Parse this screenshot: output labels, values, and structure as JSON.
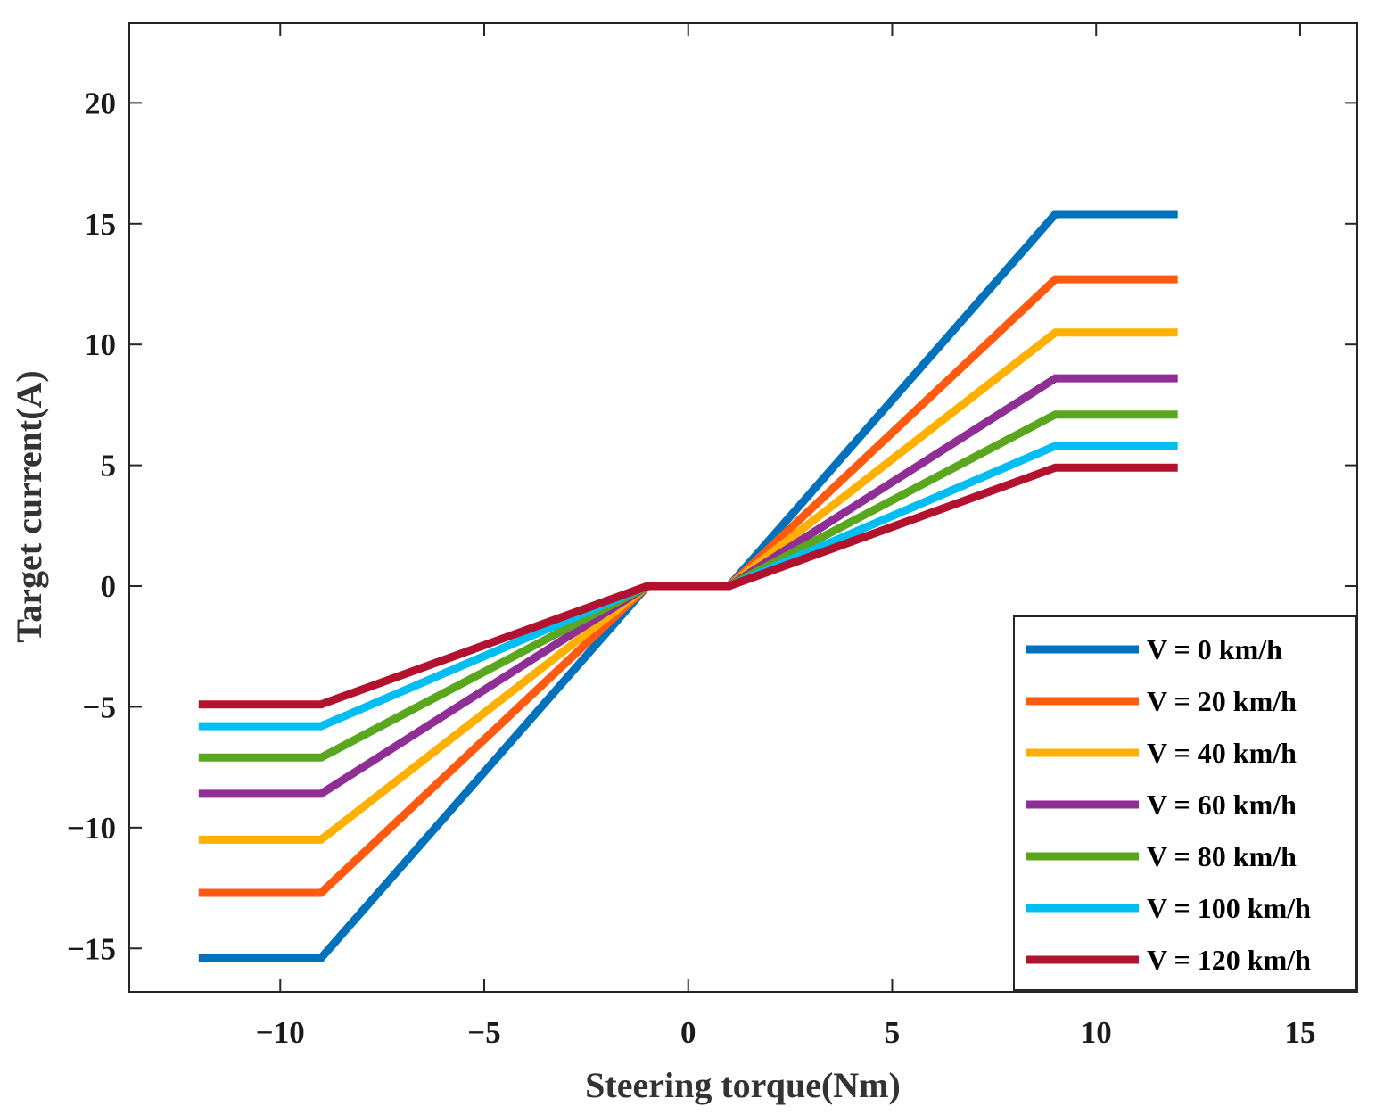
{
  "chart_data": {
    "type": "line",
    "title": "",
    "xlabel": "Steering torque(Nm)",
    "ylabel": "Target current(A)",
    "xlim": [
      -13.7,
      16.4
    ],
    "ylim": [
      -16.8,
      23.3
    ],
    "xticks": [
      -10,
      -5,
      0,
      5,
      10,
      15
    ],
    "yticks": [
      -15,
      -10,
      -5,
      0,
      5,
      10,
      15,
      20
    ],
    "xtick_labels": [
      "−10",
      "−5",
      "0",
      "5",
      "10",
      "15"
    ],
    "ytick_labels": [
      "−15",
      "−10",
      "−5",
      "0",
      "5",
      "10",
      "15",
      "20"
    ],
    "grid": false,
    "legend_position": "bottom-right",
    "x": [
      -12,
      -9,
      -1,
      1,
      9,
      12
    ],
    "series": [
      {
        "name": "V = 0 km/h",
        "color": "#0072BD",
        "values": [
          -15.4,
          -15.4,
          0,
          0,
          15.4,
          15.4
        ]
      },
      {
        "name": "V = 20 km/h",
        "color": "#FF5A10",
        "values": [
          -12.7,
          -12.7,
          0,
          0,
          12.7,
          12.7
        ]
      },
      {
        "name": "V = 40 km/h",
        "color": "#FFB000",
        "values": [
          -10.5,
          -10.5,
          0,
          0,
          10.5,
          10.5
        ]
      },
      {
        "name": "V = 60 km/h",
        "color": "#8F2F95",
        "values": [
          -8.6,
          -8.6,
          0,
          0,
          8.6,
          8.6
        ]
      },
      {
        "name": "V = 80 km/h",
        "color": "#5AA61E",
        "values": [
          -7.1,
          -7.1,
          0,
          0,
          7.1,
          7.1
        ]
      },
      {
        "name": "V = 100 km/h",
        "color": "#00BDF2",
        "values": [
          -5.8,
          -5.8,
          0,
          0,
          5.8,
          5.8
        ]
      },
      {
        "name": "V = 120 km/h",
        "color": "#B3122E",
        "values": [
          -4.9,
          -4.9,
          0,
          0,
          4.9,
          4.9
        ]
      }
    ]
  }
}
